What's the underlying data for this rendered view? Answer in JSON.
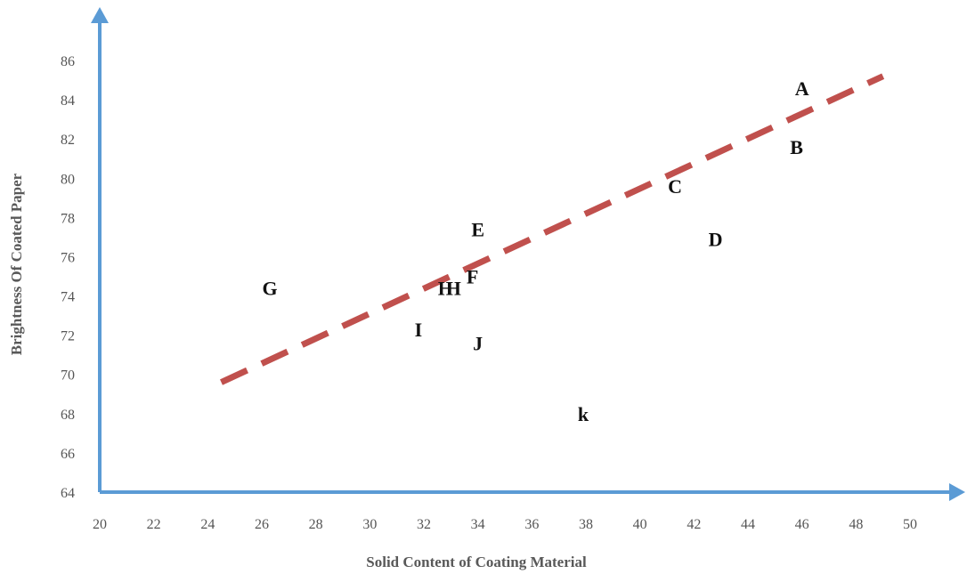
{
  "chart_data": {
    "type": "scatter",
    "title": "",
    "xlabel": "Solid Content  of Coating Material",
    "ylabel": "Brightness Of Coated  Paper",
    "xlim": [
      20,
      50
    ],
    "ylim": [
      64,
      86
    ],
    "xticks": [
      20,
      22,
      24,
      26,
      28,
      30,
      32,
      34,
      36,
      38,
      40,
      42,
      44,
      46,
      48,
      50
    ],
    "yticks": [
      64,
      66,
      68,
      70,
      72,
      74,
      76,
      78,
      80,
      82,
      84,
      86
    ],
    "grid": false,
    "legend": "none",
    "points": [
      {
        "label": "A",
        "x": 46,
        "y": 84.6
      },
      {
        "label": "B",
        "x": 45.8,
        "y": 81.6
      },
      {
        "label": "C",
        "x": 41.3,
        "y": 79.6
      },
      {
        "label": "D",
        "x": 42.8,
        "y": 76.9
      },
      {
        "label": "E",
        "x": 34,
        "y": 77.4
      },
      {
        "label": "F",
        "x": 33.8,
        "y": 75.0
      },
      {
        "label": "G",
        "x": 26.3,
        "y": 74.4
      },
      {
        "label": "H",
        "x": 32.8,
        "y": 74.4
      },
      {
        "label": "H",
        "x": 33.1,
        "y": 74.4
      },
      {
        "label": "I",
        "x": 31.8,
        "y": 72.3
      },
      {
        "label": "J",
        "x": 34,
        "y": 71.6
      },
      {
        "label": "k",
        "x": 37.9,
        "y": 68.0
      }
    ],
    "trendline": {
      "style": "dashed",
      "x": [
        24.5,
        49
      ],
      "y": [
        69.6,
        85.2
      ]
    },
    "colors": {
      "axis": "#5b9bd5",
      "trendline": "#c0504d",
      "labels": "#111111"
    }
  }
}
